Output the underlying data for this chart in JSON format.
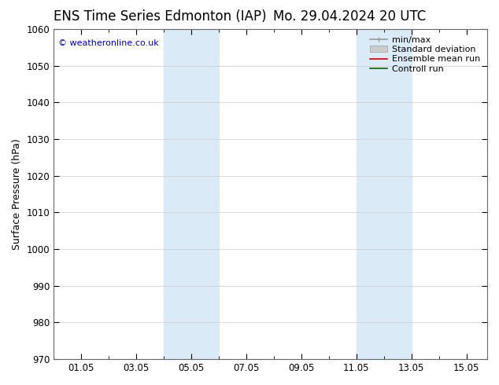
{
  "title_left": "ENS Time Series Edmonton (IAP)",
  "title_right": "Mo. 29.04.2024 20 UTC",
  "ylabel": "Surface Pressure (hPa)",
  "ylim": [
    970,
    1060
  ],
  "yticks": [
    970,
    980,
    990,
    1000,
    1010,
    1020,
    1030,
    1040,
    1050,
    1060
  ],
  "xtick_labels": [
    "01.05",
    "03.05",
    "05.05",
    "07.05",
    "09.05",
    "11.05",
    "13.05",
    "15.05"
  ],
  "shaded_bands": [
    {
      "x0": "2024-05-04",
      "x1": "2024-05-06",
      "color": "#daeaf7"
    },
    {
      "x0": "2024-05-11",
      "x1": "2024-05-13",
      "color": "#daeaf7"
    }
  ],
  "xmin": "2024-04-30",
  "xmax": "2024-05-15 18:00",
  "copyright_text": "© weatheronline.co.uk",
  "copyright_color": "#0000bb",
  "legend_items": [
    {
      "label": "min/max",
      "color": "#999999",
      "lw": 1.2
    },
    {
      "label": "Standard deviation",
      "color": "#bbbbbb",
      "lw": 7
    },
    {
      "label": "Ensemble mean run",
      "color": "#cc0000",
      "lw": 1.2
    },
    {
      "label": "Controll run",
      "color": "#006600",
      "lw": 1.2
    }
  ],
  "bg_color": "#ffffff",
  "grid_color": "#cccccc",
  "title_fontsize": 12,
  "tick_fontsize": 8.5,
  "ylabel_fontsize": 9,
  "legend_fontsize": 8
}
